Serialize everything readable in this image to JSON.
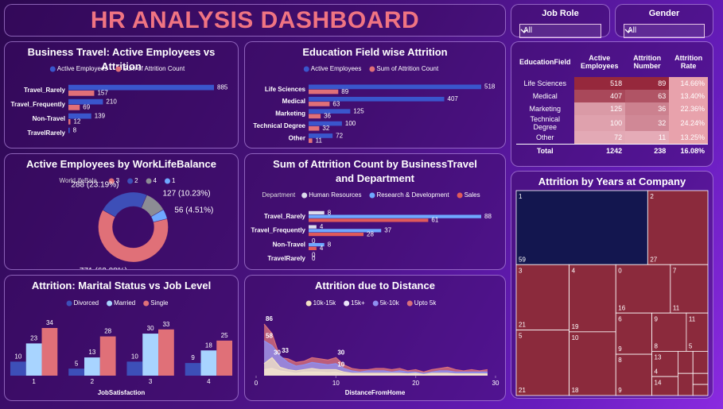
{
  "title": "HR ANALYSIS DASHBOARD",
  "slicers": [
    {
      "label": "Job Role",
      "value": "All"
    },
    {
      "label": "Gender",
      "value": "All"
    }
  ],
  "table": {
    "columns": [
      "EducationField",
      "Active Employees",
      "Attrition Number",
      "Attrition Rate"
    ],
    "rows": [
      [
        "Life Sciences",
        518,
        89,
        "14.66%"
      ],
      [
        "Medical",
        407,
        63,
        "13.40%"
      ],
      [
        "Marketing",
        125,
        36,
        "22.36%"
      ],
      [
        "Technical Degree",
        100,
        32,
        "24.24%"
      ],
      [
        "Other",
        72,
        11,
        "13.25%"
      ]
    ],
    "total": [
      "Total",
      1242,
      238,
      "16.08%"
    ]
  },
  "chart_data": [
    {
      "type": "hbar",
      "title": "Business Travel: Active Employees vs Attrition",
      "categories": [
        "Travel_Rarely",
        "Travel_Frequently",
        "Non-Travel",
        "TravelRarely"
      ],
      "series": [
        {
          "name": "Active Employees",
          "color": "#3a56cc",
          "values": [
            885,
            210,
            139,
            8
          ]
        },
        {
          "name": "Sum of Attrition Count",
          "color": "#e07078",
          "values": [
            157,
            69,
            12,
            null
          ]
        }
      ]
    },
    {
      "type": "hbar",
      "title": "Education Field wise Attrition",
      "categories": [
        "Life Sciences",
        "Medical",
        "Marketing",
        "Technical Degree",
        "Other"
      ],
      "series": [
        {
          "name": "Active Employees",
          "color": "#3a56cc",
          "values": [
            518,
            407,
            125,
            100,
            72
          ]
        },
        {
          "name": "Sum of Attrition Count",
          "color": "#e07078",
          "values": [
            89,
            63,
            36,
            32,
            11
          ]
        }
      ]
    },
    {
      "type": "donut",
      "title": "Active Employees by WorkLifeBalance",
      "legend_title": "WorkLifeBala...",
      "categories": [
        "3",
        "2",
        "4",
        "1"
      ],
      "values": [
        771,
        288,
        127,
        56
      ],
      "value_labels": [
        "771 (62.08%)",
        "288 (23.19%)",
        "127 (10.23%)",
        "56 (4.51%)"
      ],
      "colors": [
        "#e07078",
        "#3d4fb8",
        "#8c8c94",
        "#6fa8ff"
      ]
    },
    {
      "type": "hbar",
      "title": "Sum of Attrition Count by BusinessTravel and Department",
      "legend_title": "Department",
      "categories": [
        "Travel_Rarely",
        "Travel_Frequently",
        "Non-Travel",
        "TravelRarely"
      ],
      "series": [
        {
          "name": "Human Resources",
          "color": "#dcdcec",
          "values": [
            8,
            4,
            0,
            0
          ]
        },
        {
          "name": "Research & Development",
          "color": "#6fa8ff",
          "values": [
            88,
            37,
            8,
            0
          ]
        },
        {
          "name": "Sales",
          "color": "#e05a5a",
          "values": [
            61,
            28,
            4,
            null
          ]
        }
      ]
    },
    {
      "type": "column",
      "title": "Attrition: Marital Status vs Job Level",
      "x_label": "JobSatisfaction",
      "categories": [
        "1",
        "2",
        "3",
        "4"
      ],
      "series": [
        {
          "name": "Divorced",
          "color": "#3d4fb8",
          "values": [
            10,
            5,
            10,
            9
          ]
        },
        {
          "name": "Married",
          "color": "#a8d4ff",
          "values": [
            23,
            13,
            30,
            18
          ]
        },
        {
          "name": "Single",
          "color": "#e07078",
          "values": [
            34,
            28,
            33,
            25
          ]
        }
      ]
    },
    {
      "type": "area",
      "title": "Attrition due to Distance",
      "x_label": "DistanceFromHome",
      "xlim": [
        0,
        30
      ],
      "xticks": [
        0,
        10,
        20,
        30
      ],
      "x": [
        1,
        2,
        3,
        4,
        5,
        6,
        7,
        8,
        9,
        10,
        11,
        12,
        13,
        14,
        15,
        16,
        17,
        18,
        19,
        20,
        21,
        22,
        23,
        24,
        25,
        26,
        27,
        28,
        29
      ],
      "series": [
        {
          "name": "10k-15k",
          "color": "#f3e1c4",
          "values": [
            20,
            30,
            14,
            10,
            8,
            10,
            12,
            10,
            10,
            10,
            6,
            4,
            4,
            4,
            4,
            4,
            4,
            4,
            3,
            4,
            2,
            4,
            4,
            4,
            3,
            3,
            3,
            3,
            3
          ],
          "value_labels": [
            null,
            "30",
            null,
            null,
            null,
            null,
            null,
            null,
            null,
            "10",
            null,
            null,
            null,
            null,
            null,
            null,
            null,
            null,
            null,
            null,
            null,
            null,
            null,
            null,
            null,
            null,
            null,
            null,
            null
          ]
        },
        {
          "name": "15k+",
          "color": "#ece4fa",
          "values": [
            10,
            12,
            8,
            6,
            4,
            6,
            6,
            6,
            5,
            6,
            3,
            2,
            2,
            2,
            2,
            2,
            2,
            2,
            2,
            2,
            1,
            2,
            2,
            2,
            2,
            2,
            2,
            2,
            2
          ]
        },
        {
          "name": "5k-10k",
          "color": "#8f8ff0",
          "values": [
            58,
            50,
            33,
            22,
            16,
            18,
            22,
            20,
            18,
            20,
            12,
            8,
            6,
            8,
            8,
            8,
            6,
            8,
            6,
            6,
            4,
            6,
            8,
            8,
            6,
            6,
            6,
            6,
            6
          ],
          "value_labels": [
            "58",
            null,
            "33",
            null,
            null,
            null,
            null,
            null,
            null,
            null,
            null,
            null,
            null,
            null,
            null,
            null,
            null,
            null,
            null,
            null,
            null,
            null,
            null,
            null,
            null,
            null,
            null,
            null,
            null
          ]
        },
        {
          "name": "Upto 5k",
          "color": "#d9707a",
          "values": [
            86,
            70,
            30,
            28,
            22,
            24,
            30,
            28,
            26,
            30,
            18,
            12,
            10,
            10,
            12,
            12,
            10,
            12,
            8,
            10,
            6,
            10,
            12,
            14,
            10,
            8,
            10,
            8,
            10
          ],
          "value_labels": [
            "86",
            null,
            null,
            null,
            null,
            null,
            null,
            null,
            null,
            "30",
            null,
            null,
            null,
            null,
            null,
            null,
            null,
            null,
            null,
            null,
            null,
            null,
            null,
            null,
            null,
            null,
            null,
            null,
            null
          ]
        }
      ]
    },
    {
      "type": "treemap",
      "title": "Attrition by Years at Company",
      "color": "#8b2a3c",
      "top_color": "#13164f",
      "categories": [
        "1",
        "2",
        "3",
        "5",
        "4",
        "10",
        "0",
        "7",
        "6",
        "8",
        "9",
        "11",
        "13",
        "14",
        null,
        null,
        null,
        null,
        null
      ],
      "values": [
        59,
        27,
        21,
        21,
        19,
        18,
        16,
        11,
        9,
        9,
        8,
        5,
        4,
        3,
        2,
        2,
        2,
        1,
        1
      ]
    }
  ]
}
